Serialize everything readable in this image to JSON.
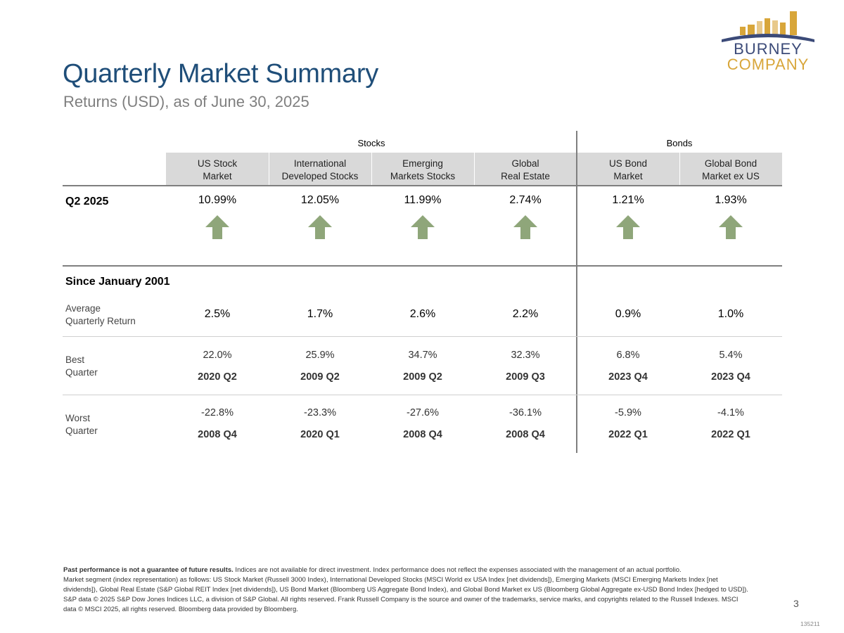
{
  "header": {
    "title": "Quarterly Market Summary",
    "subtitle": "Returns (USD), as of June 30, 2025"
  },
  "logo": {
    "line1": "BURNEY",
    "line2": "COMPANY"
  },
  "groups": {
    "stocks": "Stocks",
    "bonds": "Bonds"
  },
  "columns": [
    {
      "line1": "US Stock",
      "line2": "Market"
    },
    {
      "line1": "International",
      "line2": "Developed Stocks"
    },
    {
      "line1": "Emerging",
      "line2": "Markets Stocks"
    },
    {
      "line1": "Global",
      "line2": "Real Estate"
    },
    {
      "line1": "US Bond",
      "line2": "Market"
    },
    {
      "line1": "Global Bond",
      "line2": "Market ex US"
    }
  ],
  "q2": {
    "label": "Q2 2025",
    "values": [
      "10.99%",
      "12.05%",
      "11.99%",
      "2.74%",
      "1.21%",
      "1.93%"
    ],
    "direction": [
      "up",
      "up",
      "up",
      "up",
      "up",
      "up"
    ],
    "arrow_color": "#8fa67a"
  },
  "since": {
    "label": "Since January 2001",
    "average": {
      "label1": "Average",
      "label2": "Quarterly Return",
      "values": [
        "2.5%",
        "1.7%",
        "2.6%",
        "2.2%",
        "0.9%",
        "1.0%"
      ]
    },
    "best": {
      "label1": "Best",
      "label2": "Quarter",
      "values": [
        "22.0%",
        "25.9%",
        "34.7%",
        "32.3%",
        "6.8%",
        "5.4%"
      ],
      "periods": [
        "2020 Q2",
        "2009 Q2",
        "2009 Q2",
        "2009 Q3",
        "2023 Q4",
        "2023 Q4"
      ]
    },
    "worst": {
      "label1": "Worst",
      "label2": "Quarter",
      "values": [
        "-22.8%",
        "-23.3%",
        "-27.6%",
        "-36.1%",
        "-5.9%",
        "-4.1%"
      ],
      "periods": [
        "2008 Q4",
        "2020 Q1",
        "2008 Q4",
        "2008 Q4",
        "2022 Q1",
        "2022 Q1"
      ]
    }
  },
  "footnote": {
    "bold": "Past performance is not a guarantee of future results.",
    "text1": " Indices are not available for direct investment. Index performance does not reflect the expenses associated with the management of an actual portfolio.",
    "text2": "Market segment (index representation) as follows: US Stock Market (Russell 3000 Index), International Developed Stocks (MSCI World ex USA Index [net dividends]), Emerging Markets (MSCI Emerging Markets Index [net dividends]), Global Real Estate (S&P Global REIT Index [net dividends]), US Bond Market (Bloomberg US Aggregate Bond Index), and Global Bond Market ex US (Bloomberg Global Aggregate ex-USD Bond Index [hedged to USD]). S&P data © 2025 S&P Dow Jones Indices LLC, a division of S&P Global. All rights reserved. Frank Russell Company is the source and owner of the trademarks, service marks, and copyrights related to the Russell Indexes. MSCI data © MSCI 2025, all rights reserved. Bloomberg data provided by Bloomberg."
  },
  "page_number": "3",
  "doc_id": "135211"
}
